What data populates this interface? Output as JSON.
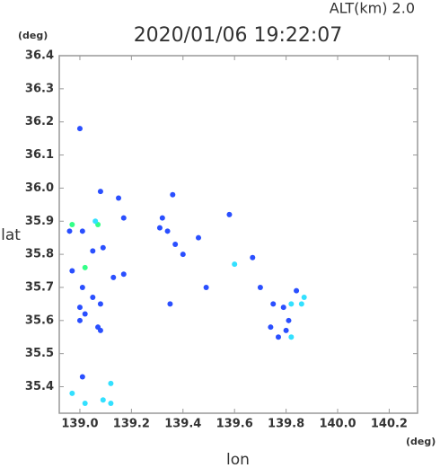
{
  "chart_data": {
    "type": "scatter",
    "title": "2020/01/06 19:22:07",
    "subtitle": "ALT(km) 2.0",
    "y_unit": "(deg)",
    "x_unit": "(deg)",
    "x_label": "lon",
    "y_label": "lat",
    "xlim": [
      138.92,
      140.31
    ],
    "ylim": [
      35.32,
      36.4
    ],
    "xticks": [
      {
        "value": 139,
        "label": "139.0"
      },
      139.2,
      139.4,
      139.6,
      139.8,
      {
        "value": 140,
        "label": "140.0"
      },
      140.2
    ],
    "yticks": [
      36.4,
      36.3,
      36.2,
      36.1,
      {
        "value": 36,
        "label": "36.0"
      },
      35.9,
      35.8,
      35.7,
      35.6,
      35.5,
      35.4
    ],
    "x": [
      139.0,
      139.01,
      138.97,
      139.02,
      139.09,
      139.12,
      139.12,
      139.07,
      139.08,
      139.0,
      139.02,
      139.0,
      139.08,
      139.05,
      139.01,
      139.02,
      138.97,
      139.05,
      139.13,
      139.17,
      139.09,
      139.07,
      139.06,
      138.97,
      138.96,
      139.01,
      139.08,
      139.15,
      139.17,
      139.32,
      139.31,
      139.34,
      139.37,
      139.36,
      139.4,
      139.46,
      139.49,
      139.35,
      139.58,
      139.6,
      139.67,
      139.7,
      139.74,
      139.77,
      139.79,
      139.82,
      139.81,
      139.82,
      139.84,
      139.87,
      139.86,
      139.75,
      139.8
    ],
    "values": [
      36.18,
      35.43,
      35.38,
      35.35,
      35.36,
      35.35,
      35.41,
      35.58,
      35.57,
      35.6,
      35.62,
      35.64,
      35.65,
      35.67,
      35.7,
      35.76,
      35.75,
      35.81,
      35.73,
      35.74,
      35.82,
      35.89,
      35.9,
      35.89,
      35.87,
      35.87,
      35.99,
      35.97,
      35.91,
      35.91,
      35.88,
      35.87,
      35.83,
      35.98,
      35.8,
      35.85,
      35.7,
      35.65,
      35.92,
      35.77,
      35.79,
      35.7,
      35.58,
      35.55,
      35.64,
      35.65,
      35.6,
      35.55,
      35.69,
      35.67,
      35.65,
      35.65,
      35.57
    ],
    "point_colors": [
      "#2a4fff",
      "#2a4fff",
      "#33e0ff",
      "#33e0ff",
      "#33e0ff",
      "#33e0ff",
      "#33e0ff",
      "#2a4fff",
      "#2a4fff",
      "#2a4fff",
      "#2a4fff",
      "#2a4fff",
      "#2a4fff",
      "#2a4fff",
      "#2a4fff",
      "#33ff88",
      "#2a4fff",
      "#2a4fff",
      "#2a4fff",
      "#2a4fff",
      "#2a4fff",
      "#33ff88",
      "#33e0ff",
      "#33ff88",
      "#2a4fff",
      "#2a4fff",
      "#2a4fff",
      "#2a4fff",
      "#2a4fff",
      "#2a4fff",
      "#2a4fff",
      "#2a4fff",
      "#2a4fff",
      "#2a4fff",
      "#2a4fff",
      "#2a4fff",
      "#2a4fff",
      "#2a4fff",
      "#2a4fff",
      "#33e0ff",
      "#2a4fff",
      "#2a4fff",
      "#2a4fff",
      "#2a4fff",
      "#2a4fff",
      "#33e0ff",
      "#2a4fff",
      "#33e0ff",
      "#2a4fff",
      "#33e0ff",
      "#33e0ff",
      "#2a4fff",
      "#2a4fff"
    ]
  }
}
